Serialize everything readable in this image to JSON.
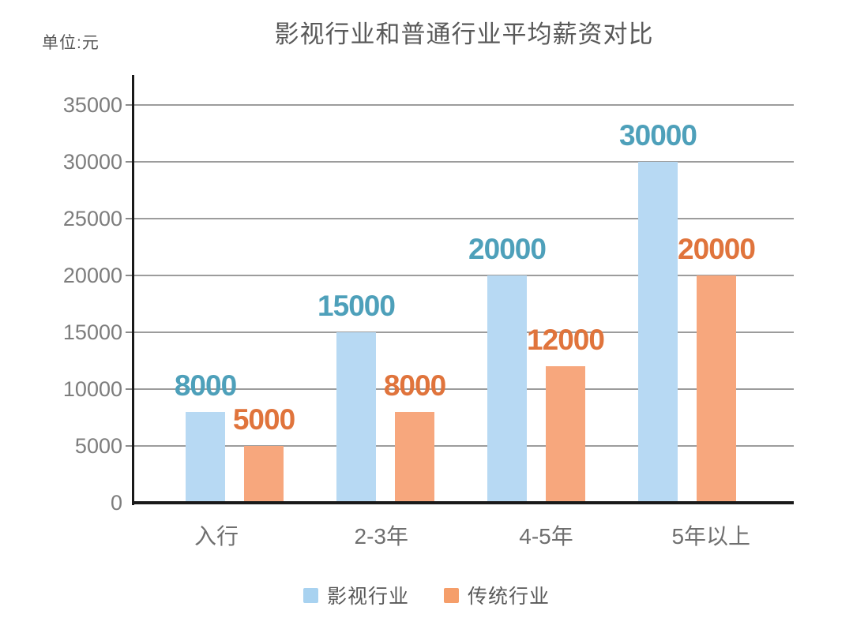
{
  "chart_data": {
    "type": "bar",
    "title": "影视行业和普通行业平均薪资对比",
    "unit_label": "单位:元",
    "categories": [
      "入行",
      "2-3年",
      "4-5年",
      "5年以上"
    ],
    "series": [
      {
        "name": "影视行业",
        "values": [
          8000,
          15000,
          20000,
          30000
        ],
        "bar_color": "#B7D9F3",
        "label_color": "#4EA0BA",
        "legend_color": "#A8D2F0"
      },
      {
        "name": "传统行业",
        "values": [
          5000,
          8000,
          12000,
          20000
        ],
        "bar_color": "#F7A77D",
        "label_color": "#E0743C",
        "legend_color": "#F59E6A"
      }
    ],
    "y_axis": {
      "min": 0,
      "max": 35000,
      "step": 5000,
      "tick_labels": [
        "0",
        "5000",
        "10000",
        "15000",
        "20000",
        "25000",
        "30000",
        "35000"
      ]
    },
    "grid": true,
    "legend_position": "bottom",
    "colors": {
      "grid": "#9c9c9c",
      "axis": "#1a1a1a",
      "y_tick_text": "#7d7d7d",
      "x_tick_text": "#6f6f6f",
      "title_text": "#595959"
    }
  }
}
